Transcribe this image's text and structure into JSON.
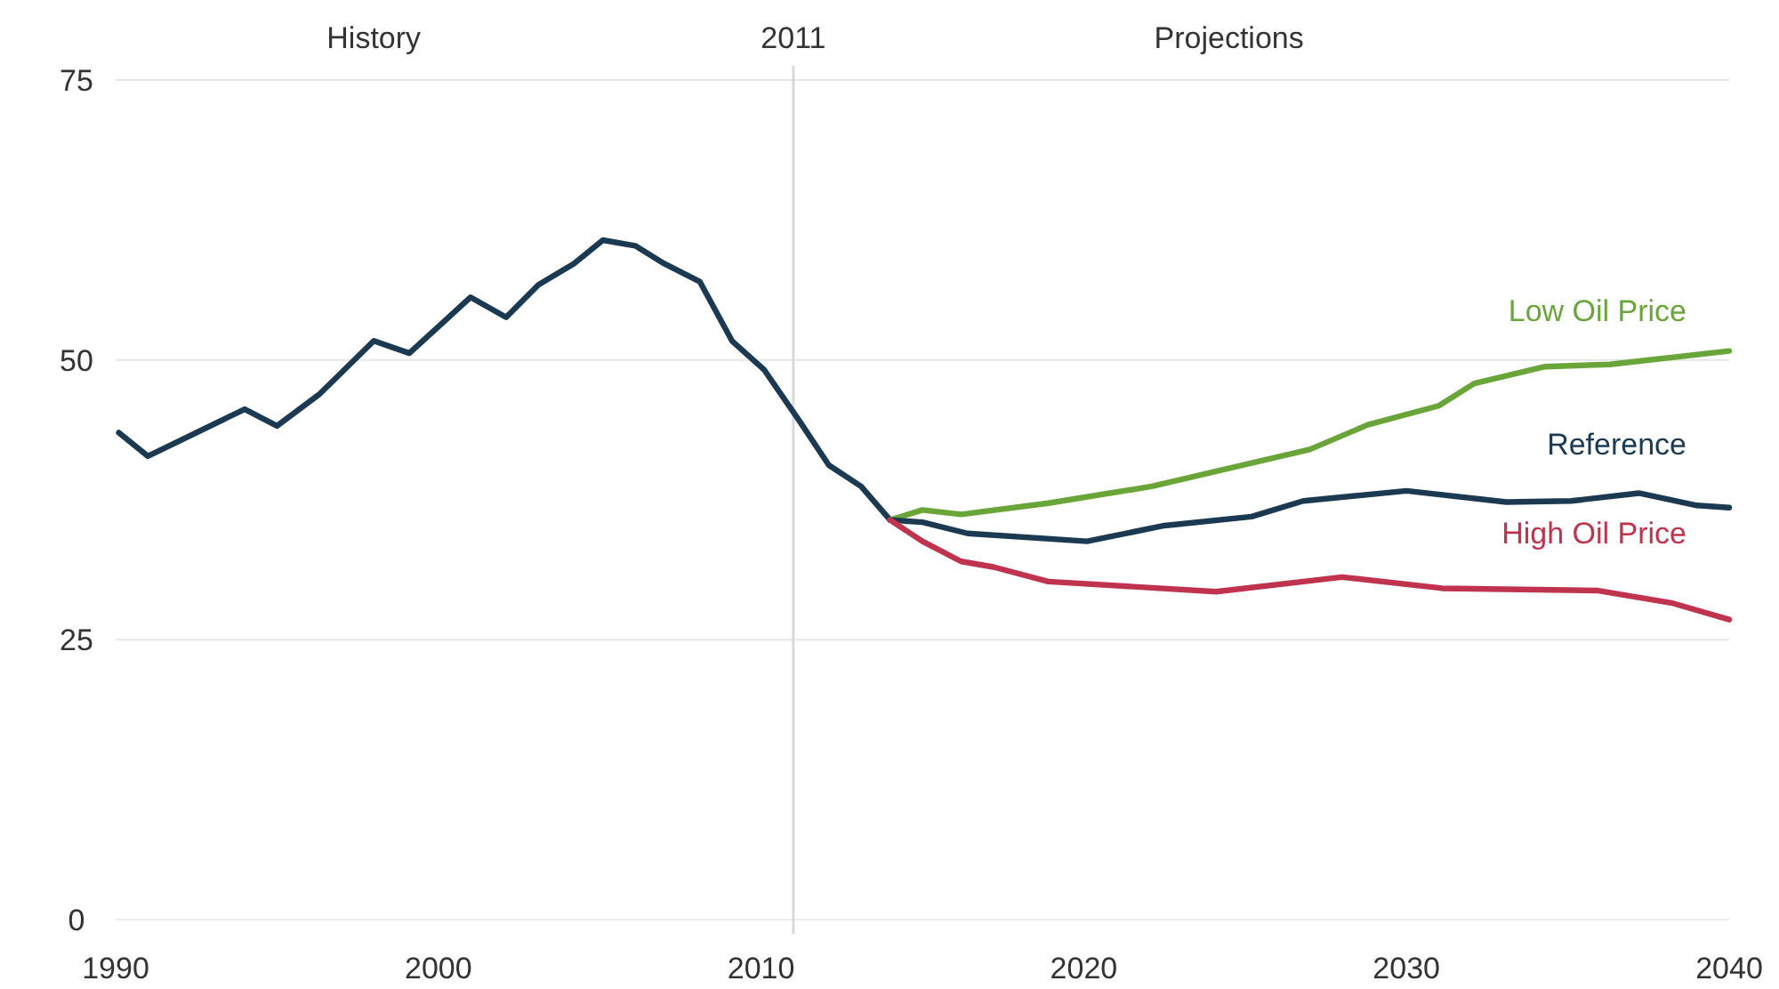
{
  "chart_data": {
    "type": "line",
    "xlim": [
      1990,
      2040
    ],
    "xticks": [
      1990,
      2000,
      2010,
      2020,
      2030,
      2040
    ],
    "ylim": [
      0,
      75
    ],
    "yticks": [
      0,
      25,
      50,
      75
    ],
    "grid": "y",
    "ref_lines": [
      {
        "axis": "x",
        "value": 2011,
        "label": "2011",
        "color": "#d9d9d9"
      }
    ],
    "annotations": [
      "History",
      "Projections"
    ],
    "series": [
      {
        "color": "#1b3a52",
        "x": [
          1990.1,
          1991,
          1994,
          1995,
          1996.3,
          1998,
          1999.1,
          2001,
          2002.1,
          2003.1,
          2004.2,
          2005.1,
          2006.1,
          2007,
          2008.1,
          2009.1,
          2010.1,
          2011.2,
          2012.1,
          2013.1,
          2014
        ],
        "values": [
          43.5,
          41.4,
          45.6,
          44.1,
          46.9,
          51.7,
          50.6,
          55.6,
          53.8,
          56.7,
          58.6,
          60.7,
          60.2,
          58.6,
          57,
          51.7,
          49.1,
          44.5,
          40.6,
          38.7,
          35.7
        ]
      },
      {
        "name": "Low Oil Price",
        "color": "#6aa53a",
        "x": [
          2014,
          2015,
          2016.2,
          2018.9,
          2022.1,
          2027,
          2028.8,
          2031,
          2032.1,
          2034.3,
          2036.3,
          2040
        ],
        "values": [
          35.7,
          36.6,
          36.2,
          37.2,
          38.7,
          42,
          44.2,
          45.9,
          47.9,
          49.4,
          49.6,
          50.8
        ]
      },
      {
        "name": "Reference",
        "color": "#1b3a52",
        "x": [
          2014,
          2015,
          2016.4,
          2020.1,
          2022.5,
          2025.2,
          2026.8,
          2030,
          2033.1,
          2035.1,
          2037.2,
          2039,
          2040
        ],
        "values": [
          35.7,
          35.5,
          34.5,
          33.8,
          35.2,
          36,
          37.4,
          38.3,
          37.3,
          37.4,
          38.1,
          37,
          36.8
        ]
      },
      {
        "name": "High Oil Price",
        "color": "#c0334e",
        "x": [
          2014,
          2015,
          2016.2,
          2017.2,
          2018.9,
          2024.1,
          2028,
          2031.1,
          2035.9,
          2038.2,
          2040
        ],
        "values": [
          35.7,
          33.8,
          32,
          31.5,
          30.2,
          29.3,
          30.6,
          29.6,
          29.4,
          28.3,
          26.8
        ]
      }
    ]
  }
}
